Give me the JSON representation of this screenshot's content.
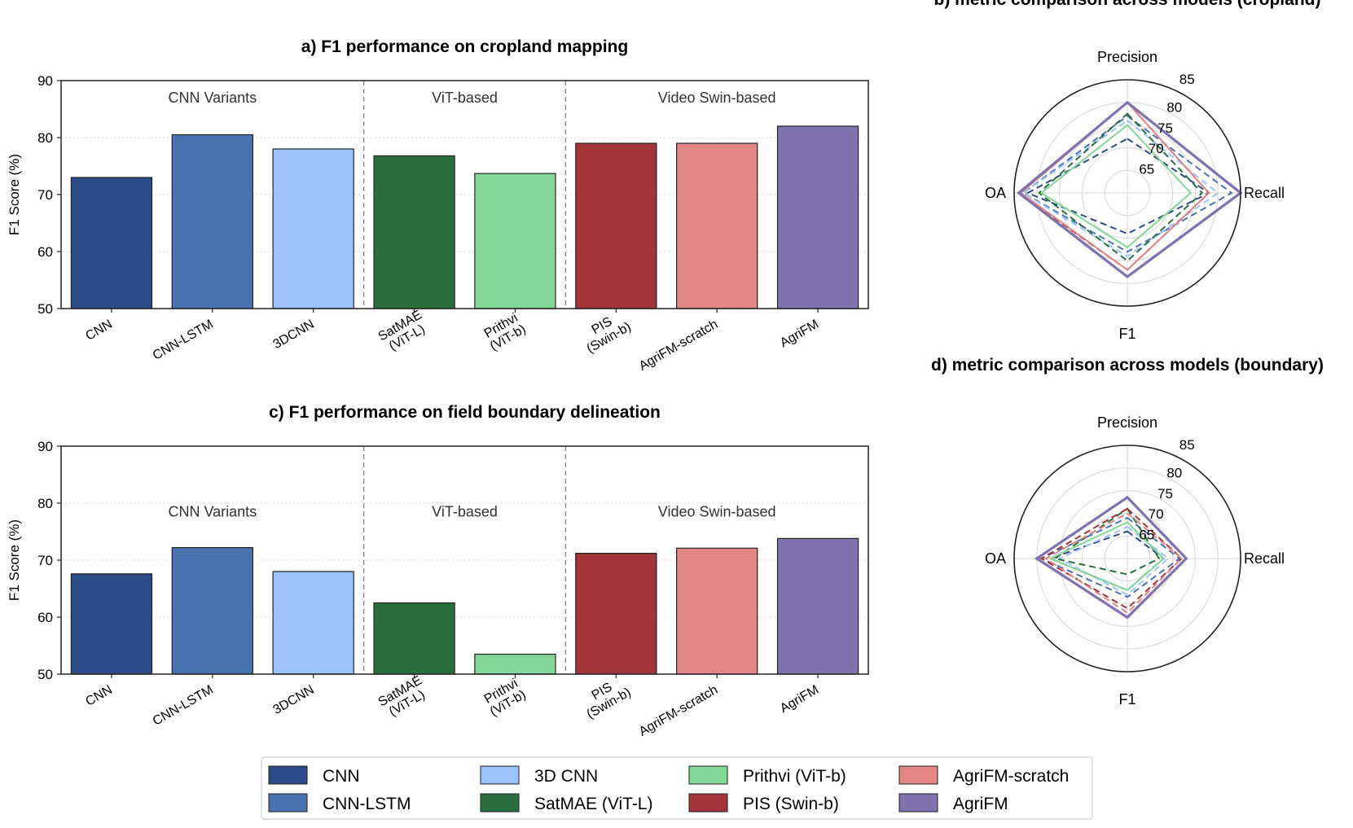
{
  "legend": [
    {
      "label": "CNN",
      "color": "#2b4c89"
    },
    {
      "label": "CNN-LSTM",
      "color": "#4a72b0"
    },
    {
      "label": "3D CNN",
      "color": "#9cc2fb"
    },
    {
      "label": "SatMAE (ViT-L)",
      "color": "#2a6e3f"
    },
    {
      "label": "Prithvi (ViT-b)",
      "color": "#84d897"
    },
    {
      "label": "PIS (Swin-b)",
      "color": "#a33439"
    },
    {
      "label": "AgriFM-scratch",
      "color": "#e48585"
    },
    {
      "label": "AgriFM",
      "color": "#7f72ae"
    }
  ],
  "chart_data": [
    {
      "id": "a",
      "type": "bar",
      "title": "a) F1 performance on cropland mapping",
      "ylabel": "F1 Score (%)",
      "xlabel": "",
      "ylim": [
        50,
        90
      ],
      "yticks": [
        50,
        60,
        70,
        80,
        90
      ],
      "grid": "y-dotted",
      "categories": [
        [
          "CNN"
        ],
        [
          "CNN-LSTM"
        ],
        [
          "3DCNN"
        ],
        [
          "SatMAE",
          "(ViT-L)"
        ],
        [
          "Prithvi",
          "(ViT-b)"
        ],
        [
          "PIS",
          "(Swin-b)"
        ],
        [
          "AgriFM-scratch"
        ],
        [
          "AgriFM"
        ]
      ],
      "values": [
        73.0,
        80.5,
        78.0,
        76.8,
        73.7,
        79.0,
        79.0,
        82.0
      ],
      "colors": [
        "#2b4c89",
        "#4a72b0",
        "#9cc2fb",
        "#2a6e3f",
        "#84d897",
        "#a33439",
        "#e48585",
        "#7f72ae"
      ],
      "group_labels": [
        "CNN Variants",
        "ViT-based",
        "Video Swin-based"
      ],
      "group_label_value": 87
    },
    {
      "id": "c",
      "type": "bar",
      "title": "c) F1 performance on field boundary delineation",
      "ylabel": "F1 Score (%)",
      "xlabel": "",
      "ylim": [
        50,
        90
      ],
      "yticks": [
        50,
        60,
        70,
        80,
        90
      ],
      "grid": "y-dotted",
      "categories": [
        [
          "CNN"
        ],
        [
          "CNN-LSTM"
        ],
        [
          "3DCNN"
        ],
        [
          "SatMAE",
          "(ViT-L)"
        ],
        [
          "Prithvi",
          "(ViT-b)"
        ],
        [
          "PIS",
          "(Swin-b)"
        ],
        [
          "AgriFM-scratch"
        ],
        [
          "AgriFM"
        ]
      ],
      "values": [
        67.6,
        72.2,
        68.0,
        62.5,
        53.5,
        71.2,
        72.1,
        73.8
      ],
      "colors": [
        "#2b4c89",
        "#4a72b0",
        "#9cc2fb",
        "#2a6e3f",
        "#84d897",
        "#a33439",
        "#e48585",
        "#7f72ae"
      ],
      "group_labels": [
        "CNN Variants",
        "ViT-based",
        "Video Swin-based"
      ],
      "group_label_value": 78.5
    },
    {
      "id": "b",
      "type": "radar",
      "title": "b) metric comparison across models (cropland)",
      "axes": [
        "Precision",
        "Recall",
        "F1",
        "OA"
      ],
      "rlim": [
        60,
        85
      ],
      "rticks": [
        65,
        70,
        75,
        80,
        85
      ],
      "series": [
        {
          "name": "CNN",
          "values": [
            72,
            78,
            69,
            82
          ],
          "dashed": true
        },
        {
          "name": "CNN-LSTM",
          "values": [
            77,
            83,
            73,
            83
          ],
          "dashed": true
        },
        {
          "name": "3D CNN",
          "values": [
            76,
            80,
            74,
            83
          ],
          "dashed": true
        },
        {
          "name": "SatMAE (ViT-L)",
          "values": [
            77.5,
            76.5,
            75,
            79.5
          ],
          "dashed": true
        },
        {
          "name": "Prithvi (ViT-b)",
          "values": [
            75,
            74,
            72,
            79
          ],
          "dashed": false
        },
        {
          "name": "PIS (Swin-b)",
          "values": [
            80,
            78,
            77,
            84
          ],
          "dashed": true
        },
        {
          "name": "AgriFM-scratch",
          "values": [
            80,
            78,
            77,
            83.5
          ],
          "dashed": false
        },
        {
          "name": "AgriFM",
          "values": [
            80,
            85,
            78.5,
            84
          ],
          "dashed": false
        }
      ]
    },
    {
      "id": "d",
      "type": "radar",
      "title": "d) metric comparison across models (boundary)",
      "axes": [
        "Precision",
        "Recall",
        "F1",
        "OA"
      ],
      "rlim": [
        60,
        85
      ],
      "rticks": [
        65,
        70,
        75,
        80,
        85
      ],
      "series": [
        {
          "name": "CNN",
          "values": [
            66,
            68,
            67,
            77
          ],
          "dashed": true
        },
        {
          "name": "CNN-LSTM",
          "values": [
            69,
            71.5,
            68.5,
            79
          ],
          "dashed": true
        },
        {
          "name": "3D CNN",
          "values": [
            67,
            69,
            68,
            75
          ],
          "dashed": true
        },
        {
          "name": "SatMAE (ViT-L)",
          "values": [
            71,
            67,
            63.5,
            76
          ],
          "dashed": true
        },
        {
          "name": "Prithvi (ViT-b)",
          "values": [
            68,
            68,
            67,
            77
          ],
          "dashed": false
        },
        {
          "name": "PIS (Swin-b)",
          "values": [
            71,
            72,
            71,
            79
          ],
          "dashed": true
        },
        {
          "name": "AgriFM-scratch",
          "values": [
            70,
            72,
            72,
            78
          ],
          "dashed": true
        },
        {
          "name": "AgriFM",
          "values": [
            73.5,
            73,
            73,
            80
          ],
          "dashed": false
        }
      ]
    }
  ]
}
